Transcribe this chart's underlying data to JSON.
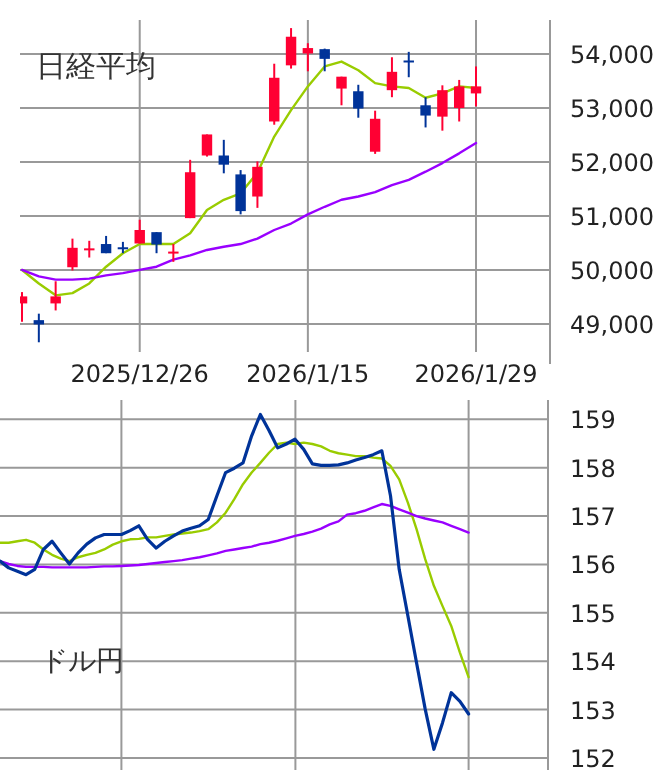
{
  "chart_data": [
    {
      "type": "candlestick",
      "title": "日経平均",
      "categories": [
        null,
        null,
        null,
        null,
        null,
        null,
        null,
        "2025/12/26",
        null,
        null,
        null,
        null,
        null,
        null,
        null,
        null,
        null,
        "2026/1/15",
        null,
        null,
        null,
        null,
        null,
        null,
        null,
        null,
        null,
        "2026/1/29"
      ],
      "ohlc": [
        [
          49380,
          49590,
          49040,
          49510
        ],
        [
          49070,
          49190,
          48660,
          48990
        ],
        [
          49380,
          49790,
          49250,
          49510
        ],
        [
          50050,
          50580,
          49990,
          50410
        ],
        [
          50380,
          50540,
          50230,
          50400
        ],
        [
          50480,
          50630,
          50310,
          50310
        ],
        [
          50420,
          50520,
          50310,
          50400
        ],
        [
          50490,
          50930,
          50490,
          50740
        ],
        [
          50700,
          50700,
          50310,
          50470
        ],
        [
          50320,
          50480,
          50150,
          50340
        ],
        [
          50960,
          52040,
          50960,
          51810
        ],
        [
          52120,
          52510,
          52100,
          52510
        ],
        [
          52120,
          52410,
          51790,
          51950
        ],
        [
          51770,
          51850,
          51030,
          51090
        ],
        [
          51360,
          52010,
          51150,
          51910
        ],
        [
          52750,
          53820,
          52690,
          53560
        ],
        [
          53790,
          54480,
          53730,
          54320
        ],
        [
          54010,
          54200,
          53680,
          54110
        ],
        [
          54090,
          54100,
          53680,
          53910
        ],
        [
          53360,
          53580,
          53050,
          53580
        ],
        [
          53310,
          53430,
          52820,
          52990
        ],
        [
          52190,
          52950,
          52150,
          52800
        ],
        [
          53330,
          53940,
          53200,
          53670
        ],
        [
          53880,
          54040,
          53570,
          53860
        ],
        [
          53050,
          53200,
          52640,
          52860
        ],
        [
          52840,
          53420,
          52580,
          53330
        ],
        [
          53000,
          53520,
          52750,
          53400
        ],
        [
          53270,
          53770,
          53030,
          53400
        ]
      ],
      "colors": [
        "#ff0033",
        "#003399",
        "#ff0033",
        "#ff0033",
        "#ff0033",
        "#003399",
        "#003399",
        "#ff0033",
        "#003399",
        "#ff0033",
        "#ff0033",
        "#ff0033",
        "#003399",
        "#003399",
        "#ff0033",
        "#ff0033",
        "#ff0033",
        "#ff0033",
        "#003399",
        "#ff0033",
        "#003399",
        "#ff0033",
        "#ff0033",
        "#003399",
        "#003399",
        "#ff0033",
        "#ff0033",
        "#ff0033"
      ],
      "series": [
        {
          "type": "line",
          "color": "#99cc00",
          "values": [
            50000,
            49750,
            49530,
            49570,
            49750,
            50060,
            50310,
            50480,
            50480,
            50480,
            50680,
            51110,
            51300,
            51420,
            51800,
            52470,
            52960,
            53400,
            53770,
            53860,
            53700,
            53460,
            53400,
            53370,
            53190,
            53270,
            53400,
            53370
          ]
        },
        {
          "type": "line",
          "color": "#9900ff",
          "values": [
            50000,
            49880,
            49820,
            49820,
            49840,
            49900,
            49940,
            50000,
            50060,
            50190,
            50270,
            50370,
            50430,
            50480,
            50580,
            50740,
            50860,
            51030,
            51170,
            51300,
            51360,
            51440,
            51570,
            51670,
            51820,
            51980,
            52160,
            52350
          ]
        }
      ],
      "ylim": [
        48480,
        54630
      ],
      "yticks": [
        {
          "value": 49000,
          "label": "49,000"
        },
        {
          "value": 50000,
          "label": "50,000"
        },
        {
          "value": 51000,
          "label": "51,000"
        },
        {
          "value": 52000,
          "label": "52,000"
        },
        {
          "value": 53000,
          "label": "53,000"
        },
        {
          "value": 54000,
          "label": "54,000"
        }
      ],
      "grid": true
    },
    {
      "type": "line",
      "title": "ドル円",
      "categories": [
        null,
        null,
        null,
        null,
        null,
        null,
        null,
        null,
        null,
        null,
        null,
        null,
        null,
        null,
        null,
        null,
        null,
        null,
        null,
        null,
        null,
        null,
        null,
        null,
        null,
        null,
        null,
        null,
        null,
        null,
        null,
        null,
        null,
        null,
        null,
        null,
        null,
        null,
        null,
        null,
        null,
        null,
        null,
        null,
        null,
        null,
        null,
        null,
        null,
        null,
        null,
        null,
        null,
        null,
        null
      ],
      "series": [
        {
          "color": "#99cc00",
          "values": [
            156.45,
            156.45,
            156.48,
            156.51,
            156.45,
            156.31,
            156.2,
            156.12,
            156.07,
            156.15,
            156.2,
            156.24,
            156.31,
            156.41,
            156.48,
            156.52,
            156.53,
            156.56,
            156.56,
            156.59,
            156.62,
            156.64,
            156.66,
            156.69,
            156.73,
            156.87,
            157.07,
            157.35,
            157.66,
            157.9,
            158.1,
            158.31,
            158.49,
            158.52,
            158.49,
            158.52,
            158.49,
            158.44,
            158.35,
            158.3,
            158.27,
            158.24,
            158.24,
            158.21,
            158.19,
            158.04,
            157.76,
            157.28,
            156.73,
            156.11,
            155.56,
            155.14,
            154.73,
            154.18,
            153.67
          ]
        },
        {
          "color": "#9900ff",
          "values": [
            156.07,
            156.01,
            155.97,
            155.95,
            155.95,
            155.95,
            155.94,
            155.94,
            155.94,
            155.94,
            155.94,
            155.95,
            155.96,
            155.96,
            155.97,
            155.98,
            155.99,
            156.01,
            156.03,
            156.05,
            156.07,
            156.09,
            156.12,
            156.15,
            156.19,
            156.23,
            156.28,
            156.31,
            156.34,
            156.37,
            156.42,
            156.45,
            156.49,
            156.54,
            156.59,
            156.63,
            156.68,
            156.74,
            156.83,
            156.89,
            157.03,
            157.06,
            157.11,
            157.18,
            157.25,
            157.21,
            157.14,
            157.07,
            157.0,
            156.95,
            156.91,
            156.87,
            156.8,
            156.73,
            156.66
          ]
        },
        {
          "color": "#003399",
          "values": [
            156.07,
            155.93,
            155.86,
            155.79,
            155.9,
            156.31,
            156.48,
            156.24,
            156.01,
            156.24,
            156.42,
            156.55,
            156.62,
            156.62,
            156.62,
            156.7,
            156.8,
            156.52,
            156.34,
            156.48,
            156.59,
            156.69,
            156.75,
            156.8,
            156.93,
            157.42,
            157.9,
            157.99,
            158.1,
            158.66,
            159.1,
            158.77,
            158.41,
            158.49,
            158.59,
            158.38,
            158.08,
            158.05,
            158.05,
            158.06,
            158.1,
            158.16,
            158.21,
            158.27,
            158.35,
            157.42,
            155.9,
            154.94,
            153.97,
            153.01,
            152.18,
            152.73,
            153.35,
            153.17,
            152.91
          ]
        }
      ],
      "ylim": [
        152,
        159.4
      ],
      "yticks": [
        152,
        153,
        154,
        155,
        156,
        157,
        158,
        159
      ],
      "grid": true
    }
  ]
}
